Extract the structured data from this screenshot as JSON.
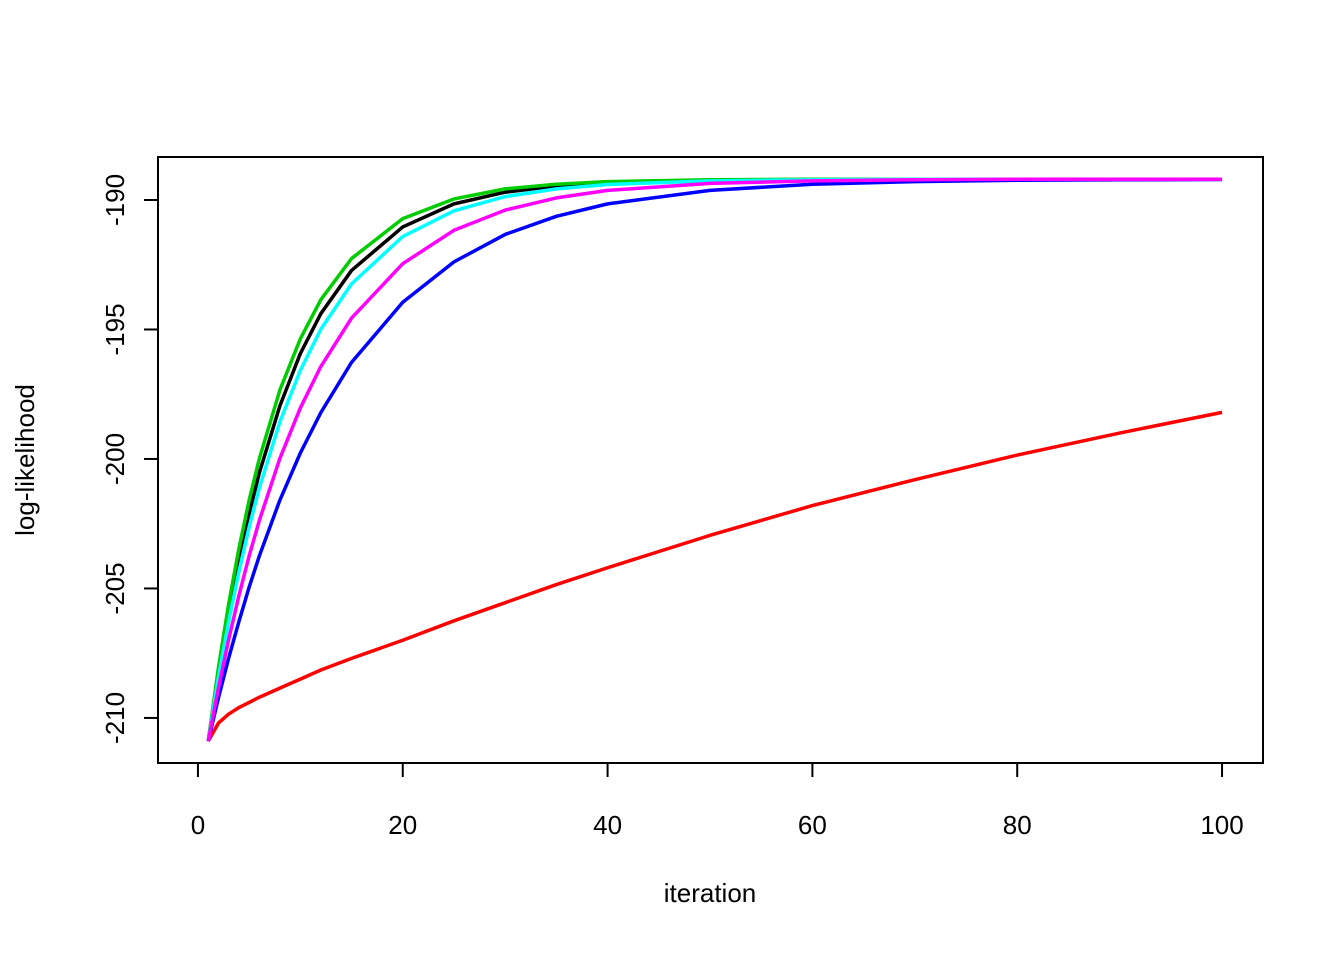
{
  "chart_data": {
    "type": "line",
    "x_label": "iteration",
    "y_label": "log-likelihood",
    "x": [
      1,
      2,
      3,
      4,
      5,
      6,
      8,
      10,
      12,
      15,
      20,
      25,
      30,
      35,
      40,
      50,
      60,
      70,
      80,
      90,
      100
    ],
    "series": [
      {
        "color": "#000000",
        "values": [
          -210.9,
          -208.25,
          -205.93,
          -203.89,
          -202.11,
          -200.53,
          -197.95,
          -195.93,
          -194.39,
          -192.72,
          -191.04,
          -190.15,
          -189.7,
          -189.46,
          -189.34,
          -189.24,
          -189.21,
          -189.2,
          -189.2,
          -189.2,
          -189.2
        ]
      },
      {
        "color": "#FF0000",
        "values": [
          -210.9,
          -210.2,
          -209.85,
          -209.6,
          -209.4,
          -209.2,
          -208.85,
          -208.5,
          -208.15,
          -207.7,
          -207.0,
          -206.25,
          -205.55,
          -204.85,
          -204.2,
          -202.95,
          -201.8,
          -200.8,
          -199.85,
          -199.0,
          -198.2
        ]
      },
      {
        "color": "#00CD00",
        "values": [
          -210.9,
          -208.06,
          -205.6,
          -203.46,
          -201.59,
          -199.98,
          -197.34,
          -195.36,
          -193.85,
          -192.26,
          -190.72,
          -189.96,
          -189.57,
          -189.39,
          -189.29,
          -189.22,
          -189.2,
          -189.2,
          -189.2,
          -189.2,
          -189.2
        ]
      },
      {
        "color": "#0000FF",
        "values": [
          -210.9,
          -209.23,
          -207.69,
          -206.28,
          -204.95,
          -203.74,
          -201.59,
          -199.77,
          -198.21,
          -196.27,
          -193.95,
          -192.39,
          -191.33,
          -190.63,
          -190.15,
          -189.63,
          -189.39,
          -189.29,
          -189.24,
          -189.22,
          -189.21
        ]
      },
      {
        "color": "#00FFFF",
        "values": [
          -210.9,
          -208.45,
          -206.28,
          -204.35,
          -202.63,
          -201.11,
          -198.57,
          -196.58,
          -194.99,
          -193.24,
          -191.41,
          -190.42,
          -189.87,
          -189.57,
          -189.4,
          -189.26,
          -189.22,
          -189.2,
          -189.2,
          -189.2,
          -189.2
        ]
      },
      {
        "color": "#FF00FF",
        "values": [
          -210.9,
          -208.84,
          -206.97,
          -205.28,
          -203.74,
          -202.37,
          -199.98,
          -198.03,
          -196.43,
          -194.56,
          -192.46,
          -191.17,
          -190.39,
          -189.92,
          -189.63,
          -189.36,
          -189.26,
          -189.22,
          -189.2,
          -189.2,
          -189.2
        ]
      }
    ],
    "xlim": [
      -3.9,
      104
    ],
    "ylim": [
      -211.74,
      -188.34
    ],
    "xticks": [
      0,
      20,
      40,
      60,
      80,
      100
    ],
    "yticks": [
      -210,
      -205,
      -200,
      -195,
      -190
    ]
  }
}
